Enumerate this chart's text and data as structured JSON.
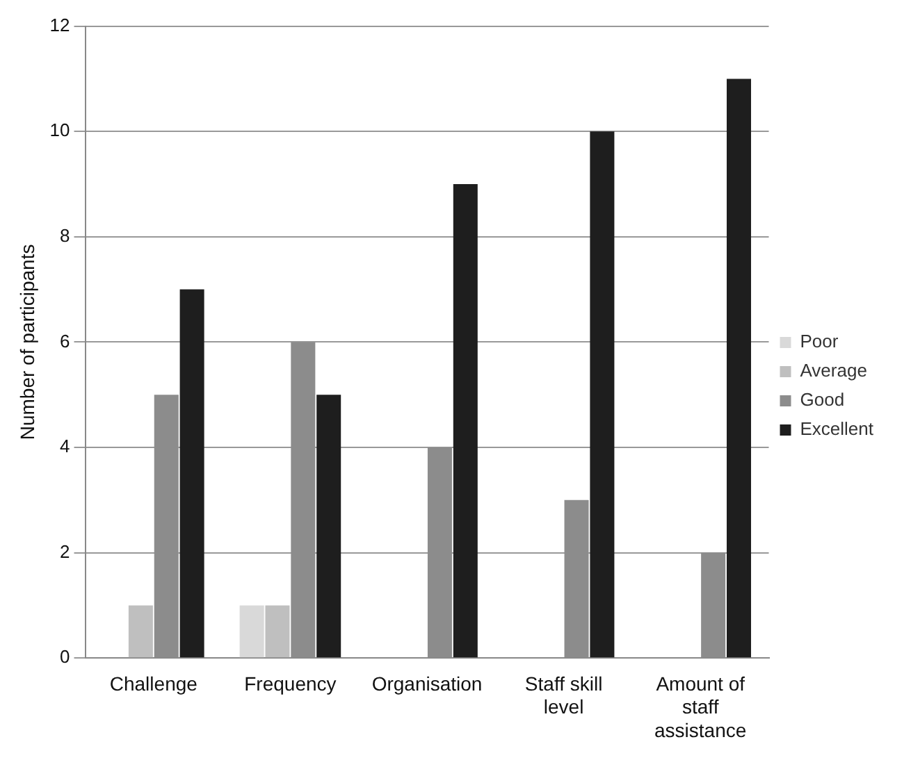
{
  "chart_data": {
    "type": "bar",
    "ylabel": "Number of participants",
    "categories": [
      "Challenge",
      "Frequency",
      "Organisation",
      "Staff skill level",
      "Amount of staff assistance"
    ],
    "series": [
      {
        "name": "Poor",
        "color": "#d9d9d9",
        "values": [
          0,
          1,
          0,
          0,
          0
        ]
      },
      {
        "name": "Average",
        "color": "#bfbfbf",
        "values": [
          1,
          1,
          0,
          0,
          0
        ]
      },
      {
        "name": "Good",
        "color": "#8c8c8c",
        "values": [
          5,
          6,
          4,
          3,
          2
        ]
      },
      {
        "name": "Excellent",
        "color": "#1e1e1e",
        "values": [
          7,
          5,
          9,
          10,
          11
        ]
      }
    ],
    "ylim": [
      0,
      12
    ],
    "yticks": [
      0,
      2,
      4,
      6,
      8,
      10,
      12
    ],
    "grid": "y",
    "legend": "right"
  }
}
